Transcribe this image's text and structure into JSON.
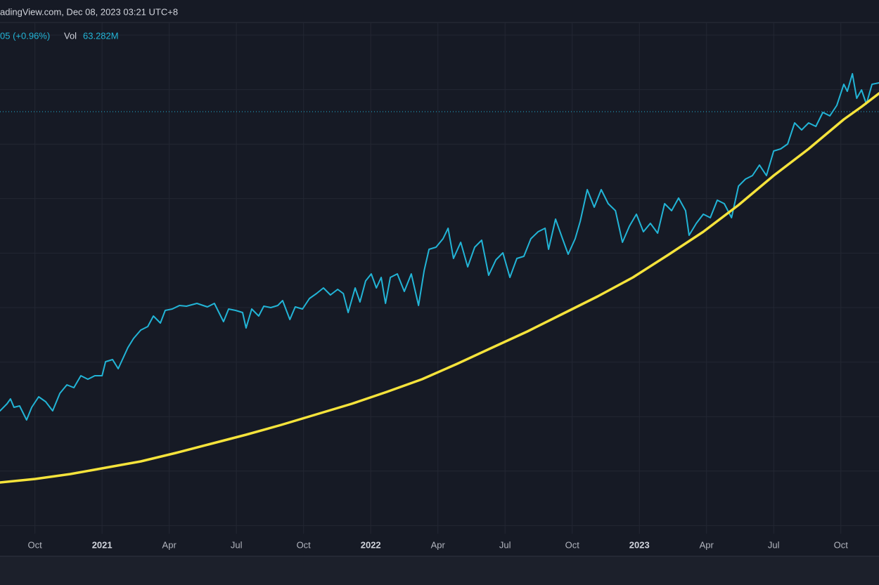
{
  "chart_data": {
    "type": "line",
    "title": "adingView.com, Dec 08, 2023 03:21 UTC+8",
    "annotations": [
      "05 (+0.96%)",
      "Vol",
      "63.282M"
    ],
    "xlim": [
      2020.62,
      2023.892
    ],
    "ylim": [
      0,
      728
    ],
    "xticks": [
      {
        "value": 2020.75,
        "label": "Oct"
      },
      2021,
      {
        "value": 2021.25,
        "label": "Apr"
      },
      {
        "value": 2021.5,
        "label": "Jul"
      },
      {
        "value": 2021.75,
        "label": "Oct"
      },
      2022,
      {
        "value": 2022.25,
        "label": "Apr"
      },
      {
        "value": 2022.5,
        "label": "Jul"
      },
      {
        "value": 2022.75,
        "label": "Oct"
      },
      2023,
      {
        "value": 2023.25,
        "label": "Apr"
      },
      {
        "value": 2023.5,
        "label": "Jul"
      },
      {
        "value": 2023.75,
        "label": "Oct"
      }
    ],
    "grid": true,
    "series": [
      {
        "color": "#22b4d6",
        "x": [
          2020.62,
          2020.646,
          2020.659,
          2020.672,
          2020.693,
          2020.719,
          2020.738,
          2020.764,
          2020.79,
          2020.816,
          2020.843,
          2020.869,
          2020.895,
          2020.921,
          2020.947,
          2020.973,
          2021.0,
          2021.013,
          2021.039,
          2021.06,
          2021.078,
          2021.096,
          2021.117,
          2021.144,
          2021.17,
          2021.191,
          2021.217,
          2021.235,
          2021.261,
          2021.288,
          2021.314,
          2021.353,
          2021.392,
          2021.418,
          2021.452,
          2021.471,
          2021.497,
          2021.523,
          2021.536,
          2021.557,
          2021.583,
          2021.602,
          2021.628,
          2021.654,
          2021.672,
          2021.699,
          2021.719,
          2021.746,
          2021.772,
          2021.798,
          2021.824,
          2021.85,
          2021.877,
          2021.898,
          2021.916,
          2021.942,
          2021.96,
          2021.981,
          2022.002,
          2022.021,
          2022.039,
          2022.055,
          2022.073,
          2022.099,
          2022.125,
          2022.151,
          2022.178,
          2022.199,
          2022.217,
          2022.243,
          2022.269,
          2022.288,
          2022.308,
          2022.335,
          2022.361,
          2022.387,
          2022.413,
          2022.439,
          2022.466,
          2022.492,
          2022.518,
          2022.544,
          2022.57,
          2022.596,
          2022.623,
          2022.649,
          2022.662,
          2022.688,
          2022.714,
          2022.735,
          2022.761,
          2022.78,
          2022.806,
          2022.832,
          2022.858,
          2022.884,
          2022.911,
          2022.937,
          2022.963,
          2022.989,
          2023.015,
          2023.041,
          2023.068,
          2023.094,
          2023.12,
          2023.146,
          2023.172,
          2023.185,
          2023.212,
          2023.238,
          2023.264,
          2023.29,
          2023.316,
          2023.343,
          2023.369,
          2023.395,
          2023.421,
          2023.447,
          2023.473,
          2023.5,
          2023.526,
          2023.552,
          2023.578,
          2023.604,
          2023.63,
          2023.657,
          2023.683,
          2023.709,
          2023.735,
          2023.761,
          2023.774,
          2023.793,
          2023.809,
          2023.827,
          2023.845,
          2023.866,
          2023.892
        ],
        "values": [
          175,
          185,
          192,
          180,
          182,
          162,
          180,
          195,
          188,
          175,
          200,
          212,
          208,
          225,
          220,
          225,
          225,
          245,
          248,
          235,
          250,
          265,
          278,
          290,
          295,
          310,
          300,
          318,
          320,
          325,
          324,
          328,
          323,
          328,
          302,
          320,
          318,
          315,
          293,
          320,
          310,
          324,
          322,
          325,
          332,
          305,
          323,
          320,
          335,
          342,
          350,
          340,
          348,
          342,
          315,
          350,
          330,
          360,
          370,
          350,
          365,
          328,
          365,
          370,
          345,
          370,
          325,
          375,
          405,
          408,
          420,
          435,
          392,
          415,
          380,
          408,
          418,
          368,
          390,
          400,
          365,
          392,
          395,
          420,
          430,
          435,
          405,
          448,
          420,
          398,
          420,
          445,
          490,
          465,
          490,
          470,
          460,
          415,
          438,
          455,
          430,
          442,
          428,
          470,
          460,
          478,
          460,
          425,
          442,
          455,
          450,
          475,
          470,
          450,
          495,
          505,
          510,
          525,
          510,
          545,
          548,
          555,
          585,
          575,
          585,
          580,
          600,
          595,
          610,
          640,
          630,
          655,
          620,
          632,
          612,
          640,
          642
        ]
      },
      {
        "color": "#f5e33b",
        "x": [
          2020.62,
          2020.751,
          2020.882,
          2021.013,
          2021.144,
          2021.274,
          2021.405,
          2021.536,
          2021.667,
          2021.798,
          2021.929,
          2022.06,
          2022.191,
          2022.322,
          2022.452,
          2022.583,
          2022.714,
          2022.845,
          2022.976,
          2023.107,
          2023.238,
          2023.369,
          2023.5,
          2023.63,
          2023.761,
          2023.827,
          2023.892
        ],
        "values": [
          73,
          78,
          85,
          94,
          103,
          115,
          128,
          141,
          155,
          170,
          185,
          202,
          220,
          242,
          265,
          288,
          313,
          338,
          365,
          397,
          430,
          468,
          510,
          548,
          590,
          608,
          627
        ]
      }
    ]
  }
}
